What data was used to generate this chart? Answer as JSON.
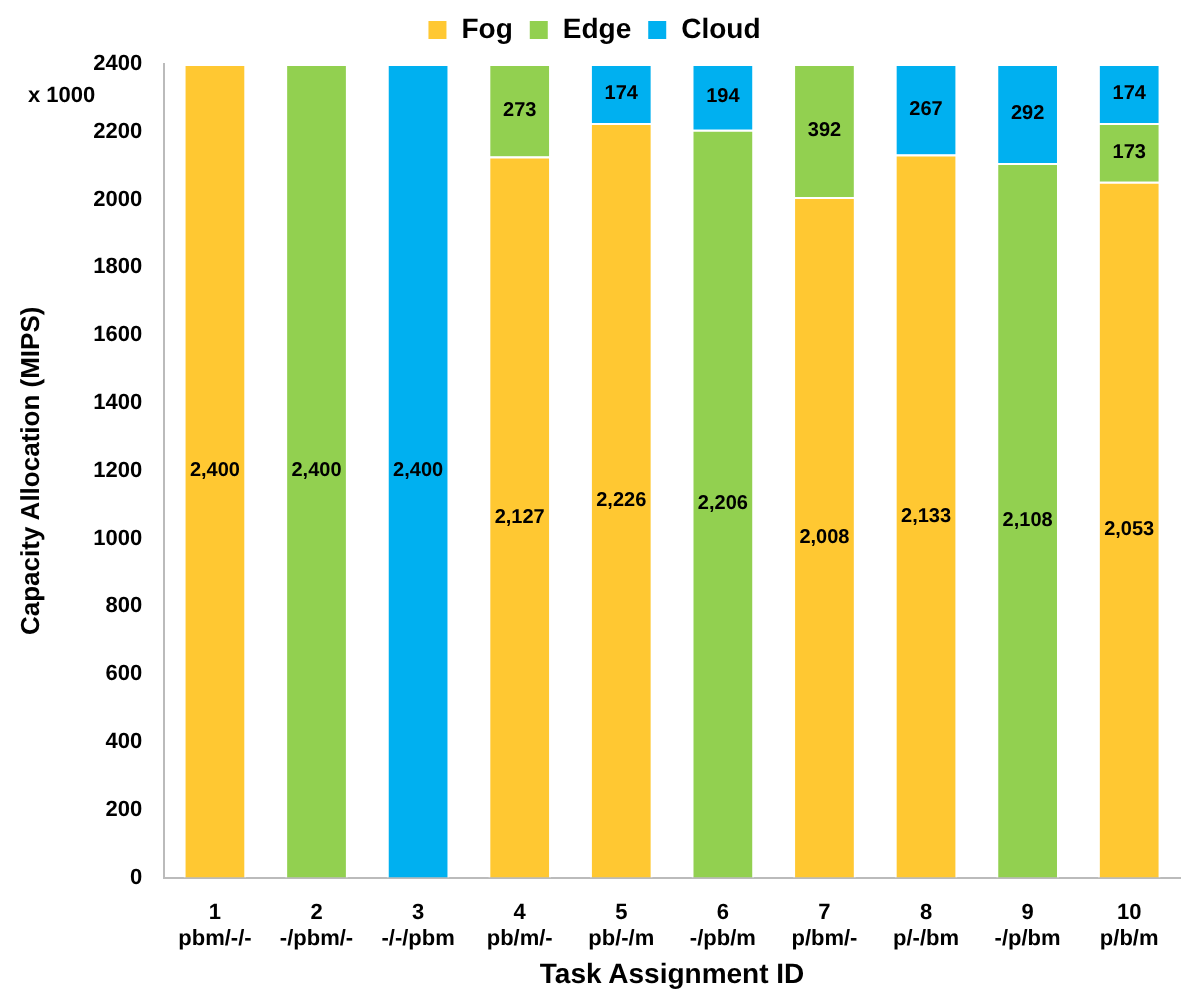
{
  "chart_data": {
    "type": "bar",
    "stacked": true,
    "xlabel": "Task Assignment ID",
    "ylabel": "Capacity Allocation (MIPS)",
    "annotations": [
      "x 1000"
    ],
    "categories": [
      "1\npbm/-/-",
      "2\n-/pbm/-",
      "3\n-/-/pbm",
      "4\npb/m/-",
      "5\npb/-/m",
      "6\n-/pb/m",
      "7\np/bm/-",
      "8\np/-/bm",
      "9\n-/p/bm",
      "10\np/b/m"
    ],
    "series": [
      {
        "name": "Fog",
        "color": "#ffc832",
        "values": [
          2400,
          null,
          null,
          2127,
          2226,
          null,
          2008,
          2133,
          null,
          2053
        ],
        "value_labels": [
          "2,400",
          null,
          null,
          "2,127",
          "2,226",
          null,
          "2,008",
          "2,133",
          null,
          "2,053"
        ]
      },
      {
        "name": "Edge",
        "color": "#92d050",
        "values": [
          null,
          2400,
          null,
          273,
          null,
          2206,
          392,
          null,
          2108,
          173
        ],
        "value_labels": [
          null,
          "2,400",
          null,
          "273",
          null,
          "2,206",
          "392",
          null,
          "2,108",
          "173"
        ]
      },
      {
        "name": "Cloud",
        "color": "#00b0f0",
        "values": [
          null,
          null,
          2400,
          null,
          174,
          194,
          null,
          267,
          292,
          174
        ],
        "value_labels": [
          null,
          null,
          "2,400",
          null,
          "174",
          "194",
          null,
          "267",
          "292",
          "174"
        ]
      }
    ],
    "ylim": [
      0,
      2400
    ],
    "yticks": [
      0,
      200,
      400,
      600,
      800,
      1000,
      1200,
      1400,
      1600,
      1800,
      2000,
      2200,
      2400
    ],
    "grid": false,
    "legend": "top"
  }
}
